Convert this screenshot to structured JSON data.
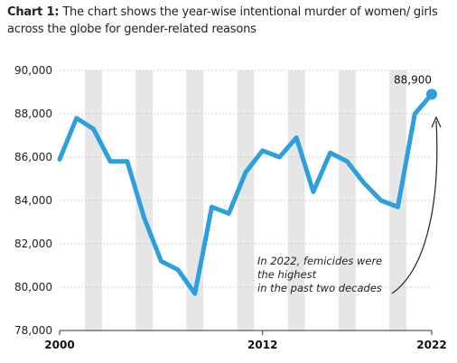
{
  "header": {
    "title_prefix": "Chart 1:",
    "title_text": "The chart shows the year-wise intentional murder of women/ girls across the globe for gender-related reasons"
  },
  "colors": {
    "line": "#2c9fdc",
    "band": "#e6e6e6",
    "grid": "#cfcfcf",
    "axis": "#333333"
  },
  "chart_data": {
    "type": "line",
    "title": "The chart shows the year-wise intentional murder of women/ girls across the globe for gender-related reasons",
    "xlabel": "",
    "ylabel": "",
    "x_ticks": [
      "2000",
      "2012",
      "2022"
    ],
    "y_ticks": [
      "78,000",
      "80,000",
      "82,000",
      "84,000",
      "86,000",
      "88,000",
      "90,000"
    ],
    "ylim": [
      78000,
      90000
    ],
    "grid": true,
    "series": [
      {
        "x": [
          2000,
          2001,
          2002,
          2003,
          2004,
          2005,
          2006,
          2007,
          2008,
          2009,
          2010,
          2011,
          2012,
          2013,
          2014,
          2015,
          2016,
          2017,
          2018,
          2019,
          2020,
          2021,
          2022
        ],
        "values": [
          85900,
          87800,
          87300,
          85800,
          85800,
          83200,
          81200,
          80800,
          79700,
          83700,
          83400,
          85300,
          86300,
          86000,
          86900,
          84400,
          86200,
          85800,
          84800,
          84000,
          83700,
          88000,
          88900
        ]
      }
    ],
    "highlight_label": "88,900",
    "annotation": [
      "In 2022, femicides were",
      "the highest",
      "in the past two decades"
    ]
  }
}
